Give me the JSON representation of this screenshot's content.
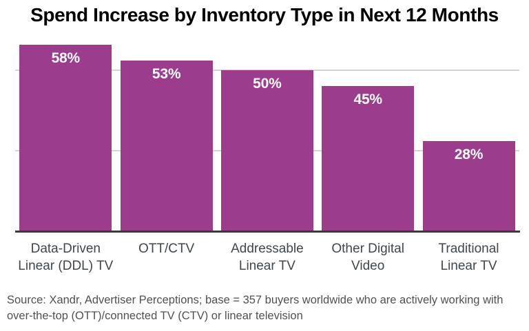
{
  "title": "Spend Increase by Inventory Type in Next 12 Months",
  "source": {
    "line1": "Source: Xandr, Advertiser Perceptions; base = 357 buyers worldwide who are actively working with",
    "line2": "over-the-top (OTT)/connected TV (CTV) or linear television"
  },
  "colors": {
    "bar": "#9c3c8c",
    "gridline": "#d4d4d7",
    "axis_line": "#3a3a3a",
    "value_label": "#ffffff",
    "category_label": "#3f464c",
    "source_text": "#4e5154",
    "title": "#000000",
    "background": "#ffffff"
  },
  "chart_data": {
    "type": "bar",
    "title": "Spend Increase by Inventory Type in Next 12 Months",
    "categories": [
      "Data-Driven Linear (DDL) TV",
      "OTT/CTV",
      "Addressable Linear TV",
      "Other Digital Video",
      "Traditional Linear TV"
    ],
    "category_lines": [
      [
        "Data-Driven",
        "Linear (DDL) TV"
      ],
      [
        "OTT/CTV"
      ],
      [
        "Addressable",
        "Linear TV"
      ],
      [
        "Other Digital",
        "Video"
      ],
      [
        "Traditional",
        "Linear TV"
      ]
    ],
    "values": [
      58,
      53,
      50,
      45,
      28
    ],
    "value_labels": [
      "58%",
      "53%",
      "50%",
      "45%",
      "28%"
    ],
    "xlabel": "",
    "ylabel": "",
    "ylim": [
      0,
      59
    ],
    "gridlines_at": [
      25,
      50
    ],
    "grid": true,
    "legend": false,
    "value_labels_position": "inside-top",
    "bar_color": "#9c3c8c"
  }
}
